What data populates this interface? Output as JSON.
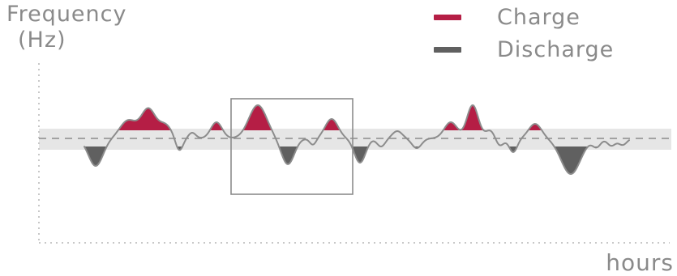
{
  "y_axis_label": {
    "line1": "Frequency",
    "line2": "(Hz)"
  },
  "x_axis_label": "hours",
  "legend": [
    {
      "label": "Charge",
      "color": "#b51e45"
    },
    {
      "label": "Discharge",
      "color": "#606060"
    }
  ],
  "colors": {
    "charge": "#b51e45",
    "discharge": "#606060",
    "band": "#e6e6e6",
    "axis": "#c8c8c8",
    "curve": "#8c8c8c",
    "box": "#8c8c8c"
  }
}
